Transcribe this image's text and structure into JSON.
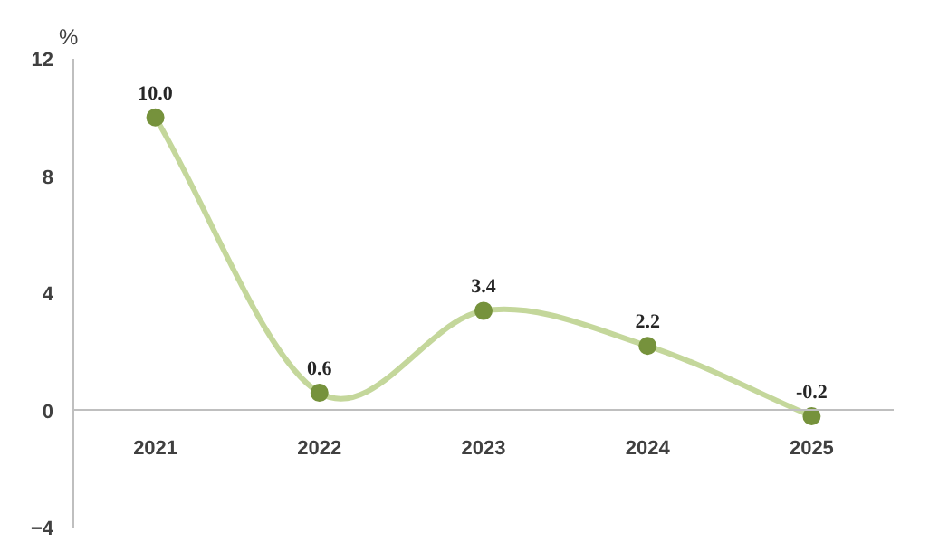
{
  "chart_data": {
    "type": "line",
    "ylabel": "%",
    "categories": [
      "2021",
      "2022",
      "2023",
      "2024",
      "2025"
    ],
    "series": [
      {
        "color": "#c4d79b",
        "colors": [
          "#76923c",
          "#76923c",
          "#76923c",
          "#76923c",
          "#76923c"
        ],
        "values": [
          10.0,
          0.6,
          3.4,
          2.2,
          -0.2
        ],
        "value_labels": [
          "10.0",
          "0.6",
          "3.4",
          "2.2",
          "-0.2"
        ]
      }
    ],
    "ylim": [
      -4,
      12
    ],
    "yticks": [
      -4,
      0,
      4,
      8,
      12
    ],
    "marker": "circle"
  }
}
